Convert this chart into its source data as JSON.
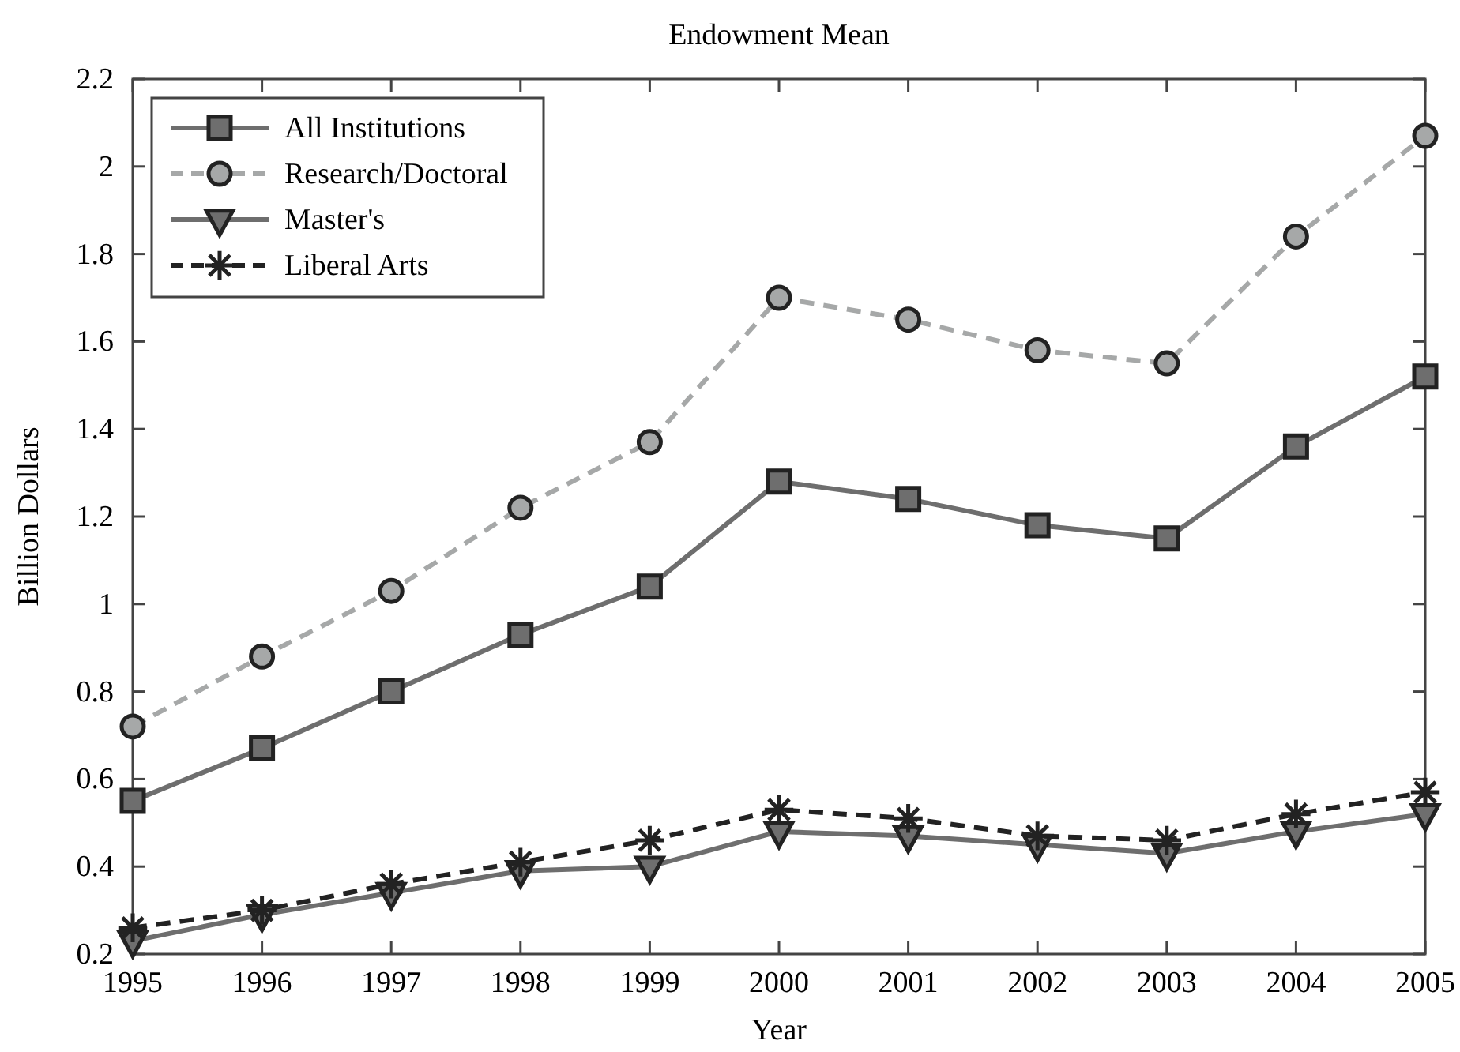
{
  "chart_data": {
    "type": "line",
    "title": "Endowment Mean",
    "xlabel": "Year",
    "ylabel": "Billion Dollars",
    "x": [
      1995,
      1996,
      1997,
      1998,
      1999,
      2000,
      2001,
      2002,
      2003,
      2004,
      2005
    ],
    "xlim": [
      1995,
      2005
    ],
    "xticks": [
      1995,
      1996,
      1997,
      1998,
      1999,
      2000,
      2001,
      2002,
      2003,
      2004,
      2005
    ],
    "ylim": [
      0.2,
      2.2
    ],
    "yticks": [
      0.2,
      0.4,
      0.6,
      0.8,
      1,
      1.2,
      1.4,
      1.6,
      1.8,
      2,
      2.2
    ],
    "grid": false,
    "legend": "top left",
    "series": [
      {
        "name": "All Institutions",
        "color": "#6e6e6e",
        "marker": "square",
        "line_style": "solid",
        "values": [
          0.55,
          0.67,
          0.8,
          0.93,
          1.04,
          1.28,
          1.24,
          1.18,
          1.15,
          1.36,
          1.52
        ]
      },
      {
        "name": "Research/Doctoral",
        "color": "#a6a8a8",
        "marker": "circle",
        "line_style": "dashed",
        "values": [
          0.72,
          0.88,
          1.03,
          1.22,
          1.37,
          1.7,
          1.65,
          1.58,
          1.55,
          1.84,
          2.07
        ]
      },
      {
        "name": "Master's",
        "color": "#6e6e6e",
        "marker": "triangle",
        "line_style": "solid",
        "values": [
          0.23,
          0.29,
          0.34,
          0.39,
          0.4,
          0.48,
          0.47,
          0.45,
          0.43,
          0.48,
          0.52
        ]
      },
      {
        "name": "Liberal Arts",
        "color": "#222222",
        "marker": "cross",
        "line_style": "dashed",
        "values": [
          0.26,
          0.3,
          0.36,
          0.41,
          0.46,
          0.53,
          0.51,
          0.47,
          0.46,
          0.52,
          0.57
        ]
      }
    ]
  }
}
